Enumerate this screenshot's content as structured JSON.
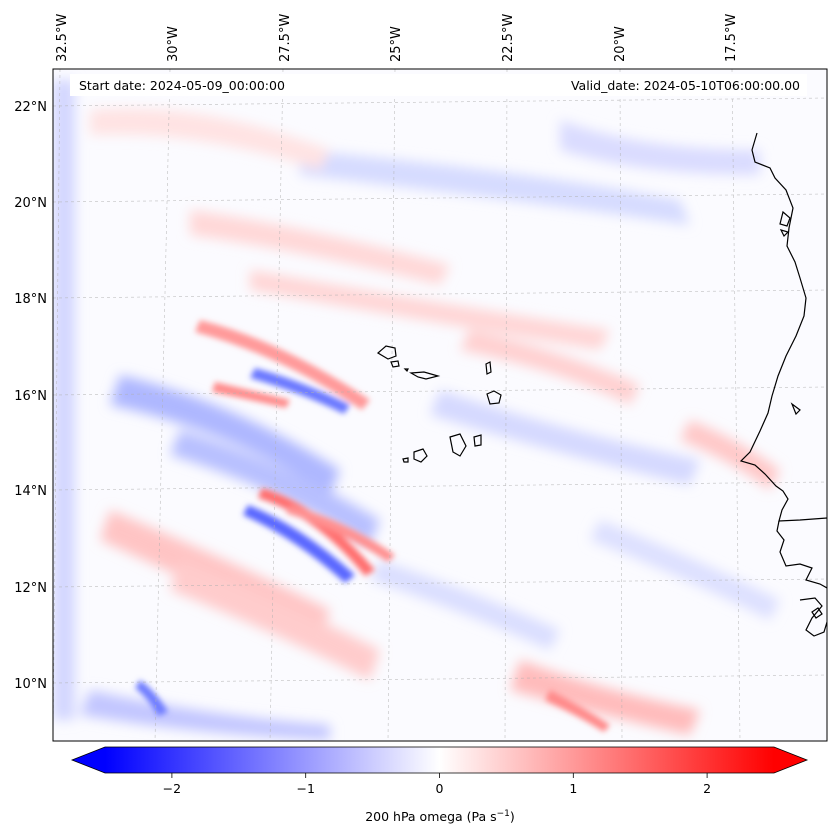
{
  "map": {
    "start_date": "Start date: 2024-05-09_00:00:00",
    "valid_date": "Valid_date: 2024-05-10T06:00:00.00",
    "lon_labels": [
      "32.5°W",
      "30°W",
      "27.5°W",
      "25°W",
      "22.5°W",
      "20°W",
      "17.5°W"
    ],
    "lat_labels": [
      "22°N",
      "20°N",
      "18°N",
      "16°N",
      "14°N",
      "12°N",
      "10°N"
    ],
    "variable": "200 hPa omega",
    "units": "Pa s⁻¹"
  },
  "colorbar": {
    "ticks": [
      "−2",
      "−1",
      "0",
      "1",
      "2"
    ],
    "tick_values": [
      -2,
      -1,
      0,
      1,
      2
    ],
    "range": [
      -2.5,
      2.5
    ],
    "label": "200 hPa omega (Pa s",
    "label_exp": "−1",
    "label_close": ")",
    "colormap": "bwr",
    "color_min": "#0000ff",
    "color_mid": "#ffffff",
    "color_max": "#ff0000"
  },
  "colors": {
    "coastline": "#000000",
    "gridline": "#b0b0b0"
  }
}
